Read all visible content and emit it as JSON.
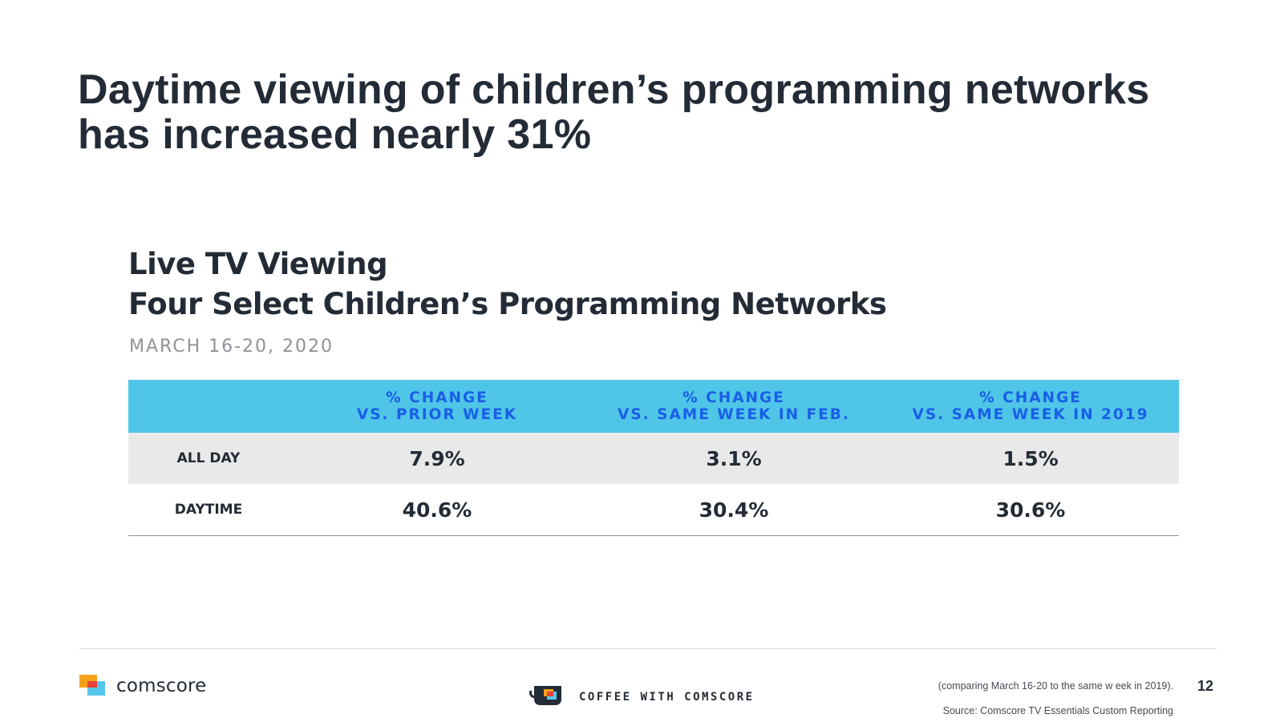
{
  "headline": {
    "line1": "Daytime viewing of children’s programming networks",
    "line2": "has increased nearly 31%"
  },
  "subtitle": {
    "line1": "Live TV Viewing",
    "line2": "Four Select Children’s Programming Networks"
  },
  "date": "MARCH 16-20, 2020",
  "table": {
    "headers": [
      {
        "line1": "% CHANGE",
        "line2": "VS. PRIOR WEEK"
      },
      {
        "line1": "% CHANGE",
        "line2": "VS. SAME WEEK IN FEB."
      },
      {
        "line1": "% CHANGE",
        "line2": "VS. SAME WEEK IN 2019"
      }
    ],
    "rows": [
      {
        "label": "ALL DAY",
        "values": [
          "7.9%",
          "3.1%",
          "1.5%"
        ]
      },
      {
        "label": "DAYTIME",
        "values": [
          "40.6%",
          "30.4%",
          "30.6%"
        ]
      }
    ]
  },
  "footer": {
    "logo_text": "comscore",
    "coffee_text": "COFFEE WITH COMSCORE",
    "footnote": "(comparing March 16-20 to the same w eek in 2019).",
    "source": "Source: Comscore TV Essentials Custom Reporting",
    "page_number": "12"
  },
  "colors": {
    "header_bg": "#4fc5e8",
    "header_text": "#1a5ee6",
    "shaded_row": "#e9e9ea",
    "text": "#232b36"
  },
  "icons": [
    "comscore-logo-icon",
    "coffee-cup-icon"
  ]
}
